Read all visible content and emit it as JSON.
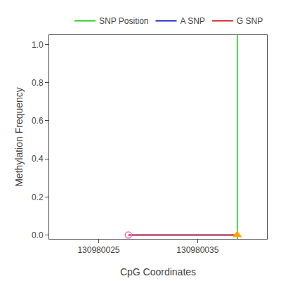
{
  "chart_data": {
    "type": "line",
    "title": "",
    "xlabel": "CpG Coordinates",
    "ylabel": "Methylation Frequency",
    "xlim": [
      130980020,
      130980042
    ],
    "ylim": [
      -0.02,
      1.05
    ],
    "xticks": [
      130980025,
      130980035
    ],
    "yticks": [
      {
        "value": 0.0,
        "label": "0.0"
      },
      0.2,
      0.4,
      0.6,
      0.8,
      {
        "value": 1.0,
        "label": "1.0"
      }
    ],
    "grid": false,
    "legend": "upper right",
    "series": [
      {
        "name": "A SNP",
        "color": "#0000CC",
        "x": [
          130980028,
          130980039
        ],
        "values": [
          0.0,
          0.0
        ]
      },
      {
        "name": "G SNP",
        "color": "#CC0000",
        "x": [
          130980028,
          130980039
        ],
        "values": [
          0.0,
          0.0
        ]
      },
      {
        "name": "SNP Position",
        "type": "vline",
        "color": "#00CC00",
        "x": [
          130980039
        ]
      }
    ],
    "points": [
      {
        "x": 130980028,
        "y": 0.0,
        "color": "#FF69B4",
        "marker": "circle-open"
      },
      {
        "x": 130980039,
        "y": 0.0,
        "color": "#FFA500",
        "marker": "triangle-up"
      }
    ]
  }
}
